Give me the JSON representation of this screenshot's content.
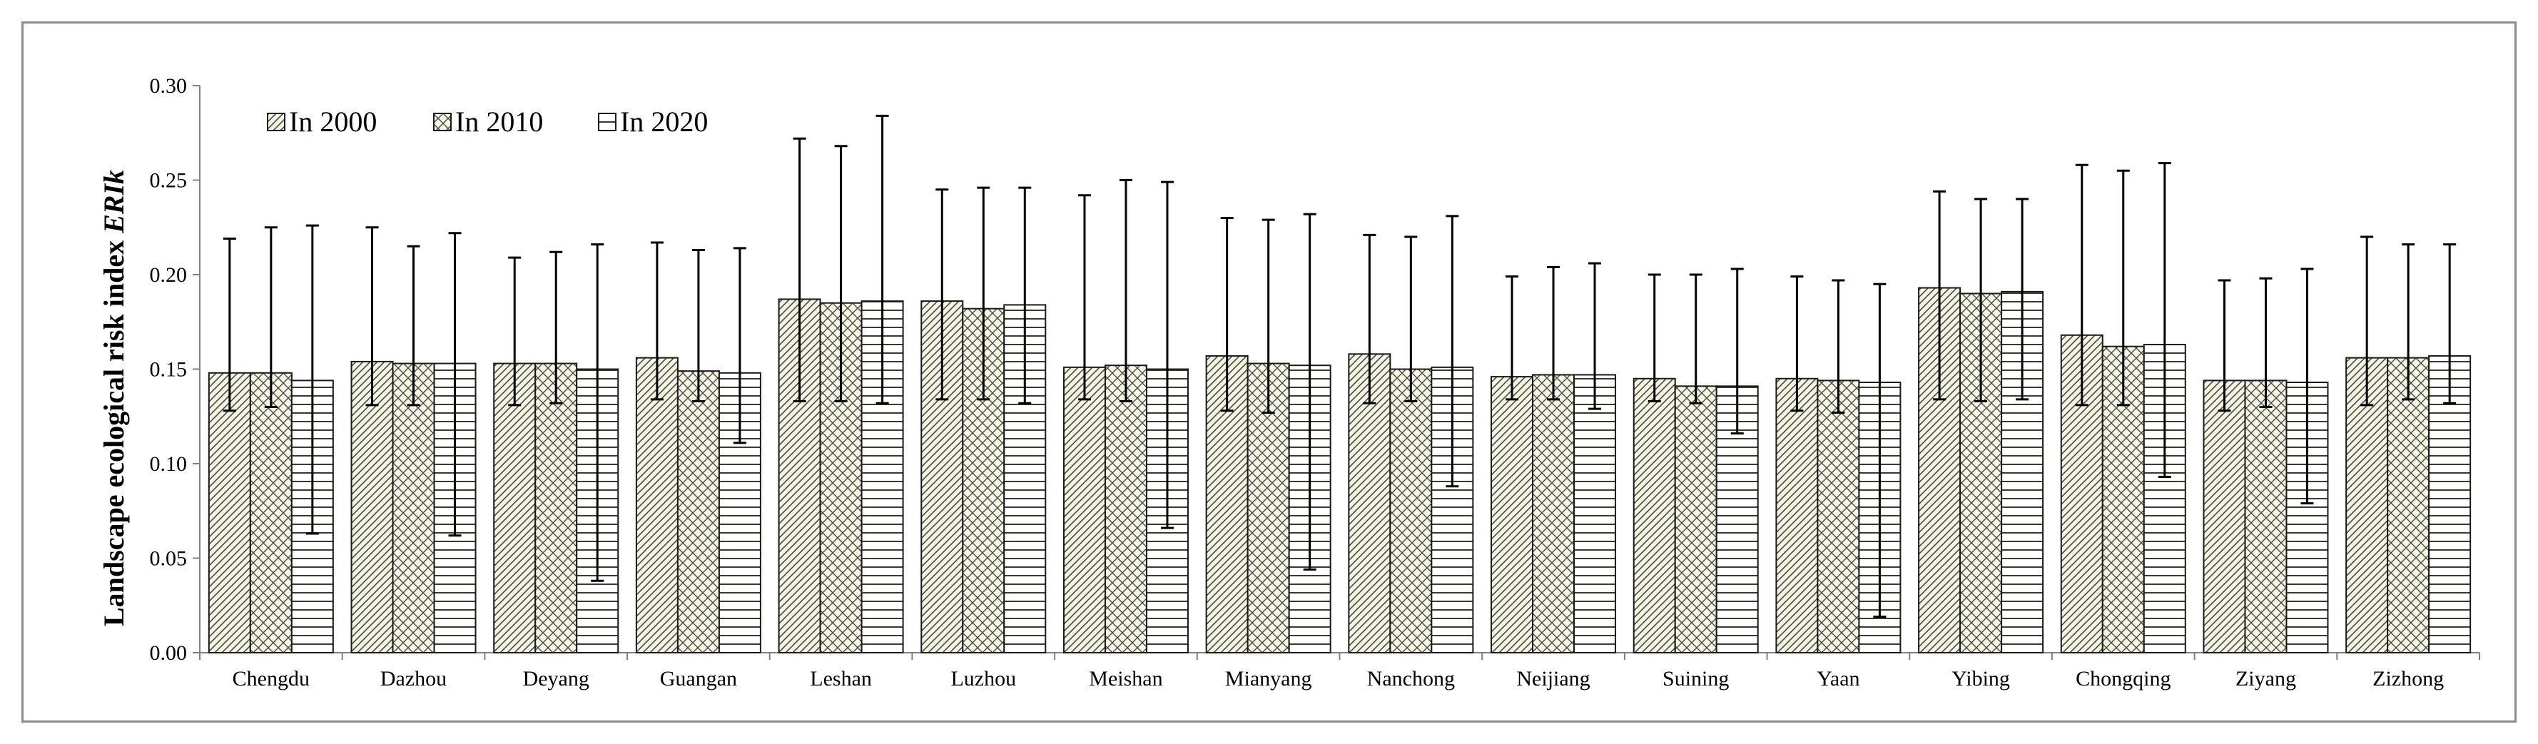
{
  "chart_data": {
    "type": "bar",
    "title": "",
    "xlabel": "",
    "ylabel": "Landscape ecological risk index",
    "ylabel_italic": "ERIk",
    "ylim": [
      0,
      0.3
    ],
    "yticks": [
      "0.00",
      "0.05",
      "0.10",
      "0.15",
      "0.20",
      "0.25",
      "0.30"
    ],
    "ytick_values": [
      0,
      0.05,
      0.1,
      0.15,
      0.2,
      0.25,
      0.3
    ],
    "grid": false,
    "legend_position": "top-left",
    "categories": [
      "Chengdu",
      "Dazhou",
      "Deyang",
      "Guangan",
      "Leshan",
      "Luzhou",
      "Meishan",
      "Mianyang",
      "Nanchong",
      "Neijiang",
      "Suining",
      "Yaan",
      "Yibing",
      "Chongqing",
      "Ziyang",
      "Zizhong"
    ],
    "series": [
      {
        "name": "In 2000",
        "pattern": "diagonal-dense",
        "values": [
          0.148,
          0.154,
          0.153,
          0.156,
          0.187,
          0.186,
          0.151,
          0.157,
          0.158,
          0.146,
          0.145,
          0.145,
          0.193,
          0.168,
          0.144,
          0.156
        ],
        "err_low": [
          0.128,
          0.131,
          0.131,
          0.134,
          0.133,
          0.134,
          0.134,
          0.128,
          0.132,
          0.134,
          0.133,
          0.128,
          0.134,
          0.131,
          0.128,
          0.131
        ],
        "err_high": [
          0.219,
          0.225,
          0.209,
          0.217,
          0.272,
          0.245,
          0.242,
          0.23,
          0.221,
          0.199,
          0.2,
          0.199,
          0.244,
          0.258,
          0.197,
          0.22
        ]
      },
      {
        "name": "In 2010",
        "pattern": "crosshatch",
        "values": [
          0.148,
          0.153,
          0.153,
          0.149,
          0.185,
          0.182,
          0.152,
          0.153,
          0.15,
          0.147,
          0.141,
          0.144,
          0.19,
          0.162,
          0.144,
          0.156
        ],
        "err_low": [
          0.13,
          0.131,
          0.132,
          0.133,
          0.133,
          0.134,
          0.133,
          0.127,
          0.133,
          0.134,
          0.132,
          0.127,
          0.133,
          0.131,
          0.13,
          0.134
        ],
        "err_high": [
          0.225,
          0.215,
          0.212,
          0.213,
          0.268,
          0.246,
          0.25,
          0.229,
          0.22,
          0.204,
          0.2,
          0.197,
          0.24,
          0.255,
          0.198,
          0.216
        ]
      },
      {
        "name": "In 2020",
        "pattern": "horizontal",
        "values": [
          0.144,
          0.153,
          0.15,
          0.148,
          0.186,
          0.184,
          0.15,
          0.152,
          0.151,
          0.147,
          0.141,
          0.143,
          0.191,
          0.163,
          0.143,
          0.157
        ],
        "err_low": [
          0.063,
          0.062,
          0.038,
          0.111,
          0.132,
          0.132,
          0.066,
          0.044,
          0.088,
          0.129,
          0.116,
          0.019,
          0.134,
          0.093,
          0.079,
          0.132
        ],
        "err_high": [
          0.226,
          0.222,
          0.216,
          0.214,
          0.284,
          0.246,
          0.249,
          0.232,
          0.231,
          0.206,
          0.203,
          0.195,
          0.24,
          0.259,
          0.203,
          0.216
        ]
      }
    ]
  }
}
